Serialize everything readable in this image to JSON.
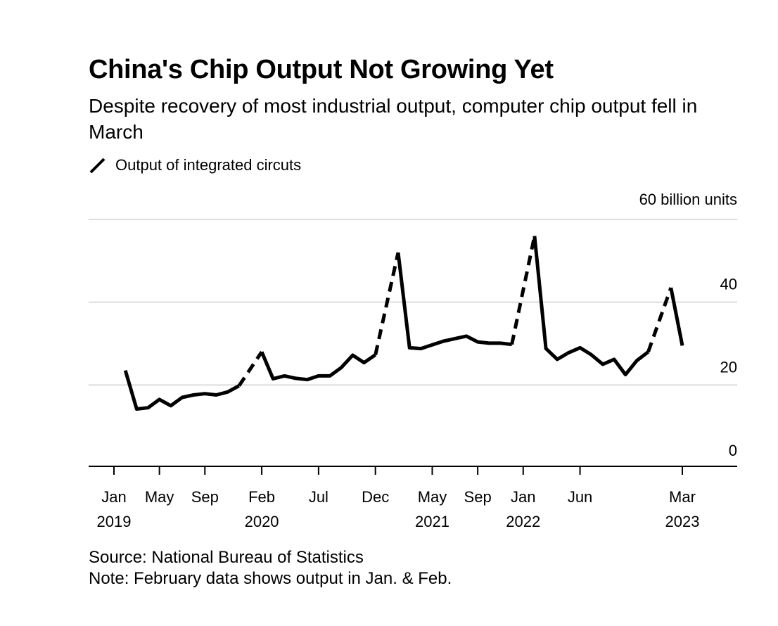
{
  "chart_data": {
    "type": "line",
    "title": "China's Chip Output Not Growing Yet",
    "subtitle": "Despite recovery of most industrial output, computer chip output fell in March",
    "legend": [
      {
        "name": "Output of integrated circuts",
        "color": "#000000"
      }
    ],
    "ylabel": "60 billion units",
    "ylim": [
      0,
      60
    ],
    "yticks": [
      0,
      20,
      40,
      60
    ],
    "ytick_labels": [
      "0",
      "20",
      "40",
      ""
    ],
    "xticks": [
      {
        "label": "Jan",
        "year": "2019",
        "x": "2019-01"
      },
      {
        "label": "May",
        "year": "",
        "x": "2019-05"
      },
      {
        "label": "Sep",
        "year": "",
        "x": "2019-09"
      },
      {
        "label": "Feb",
        "year": "2020",
        "x": "2020-02"
      },
      {
        "label": "Jul",
        "year": "",
        "x": "2020-07"
      },
      {
        "label": "Dec",
        "year": "",
        "x": "2020-12"
      },
      {
        "label": "May",
        "year": "2021",
        "x": "2021-05"
      },
      {
        "label": "Sep",
        "year": "",
        "x": "2021-09"
      },
      {
        "label": "Jan",
        "year": "2022",
        "x": "2022-01"
      },
      {
        "label": "Jun",
        "year": "",
        "x": "2022-06"
      },
      {
        "label": "Mar",
        "year": "2023",
        "x": "2023-03"
      }
    ],
    "xlim": [
      "2018-12",
      "2023-06"
    ],
    "series": [
      {
        "name": "Output of integrated circuts",
        "segments": [
          {
            "style": "solid",
            "points": [
              [
                "2019-02",
                23.5
              ],
              [
                "2019-03",
                14.2
              ],
              [
                "2019-04",
                14.5
              ],
              [
                "2019-05",
                16.5
              ],
              [
                "2019-06",
                15.0
              ],
              [
                "2019-07",
                17.0
              ],
              [
                "2019-08",
                17.6
              ],
              [
                "2019-09",
                17.9
              ],
              [
                "2019-10",
                17.6
              ],
              [
                "2019-11",
                18.3
              ],
              [
                "2019-12",
                19.8
              ]
            ]
          },
          {
            "style": "dashed",
            "points": [
              [
                "2019-12",
                19.8
              ],
              [
                "2020-02",
                28.0
              ]
            ]
          },
          {
            "style": "solid",
            "points": [
              [
                "2020-02",
                28.0
              ],
              [
                "2020-03",
                21.5
              ],
              [
                "2020-04",
                22.2
              ],
              [
                "2020-05",
                21.6
              ],
              [
                "2020-06",
                21.3
              ],
              [
                "2020-07",
                22.2
              ],
              [
                "2020-08",
                22.2
              ],
              [
                "2020-09",
                24.2
              ],
              [
                "2020-10",
                27.2
              ],
              [
                "2020-11",
                25.4
              ],
              [
                "2020-12",
                27.3
              ]
            ]
          },
          {
            "style": "dashed",
            "points": [
              [
                "2020-12",
                27.3
              ],
              [
                "2021-02",
                52.0
              ]
            ]
          },
          {
            "style": "solid",
            "points": [
              [
                "2021-02",
                52.0
              ],
              [
                "2021-03",
                29.0
              ],
              [
                "2021-04",
                28.8
              ],
              [
                "2021-05",
                29.7
              ],
              [
                "2021-06",
                30.6
              ],
              [
                "2021-07",
                31.2
              ],
              [
                "2021-08",
                31.8
              ],
              [
                "2021-09",
                30.4
              ],
              [
                "2021-10",
                30.1
              ],
              [
                "2021-11",
                30.1
              ],
              [
                "2021-12",
                29.8
              ]
            ]
          },
          {
            "style": "dashed",
            "points": [
              [
                "2021-12",
                29.8
              ],
              [
                "2022-02",
                56.0
              ]
            ]
          },
          {
            "style": "solid",
            "points": [
              [
                "2022-02",
                56.0
              ],
              [
                "2022-03",
                28.8
              ],
              [
                "2022-04",
                26.2
              ],
              [
                "2022-05",
                27.8
              ],
              [
                "2022-06",
                29.0
              ],
              [
                "2022-07",
                27.3
              ],
              [
                "2022-08",
                25.0
              ],
              [
                "2022-09",
                26.2
              ],
              [
                "2022-10",
                22.5
              ],
              [
                "2022-11",
                25.9
              ],
              [
                "2022-12",
                28.0
              ]
            ]
          },
          {
            "style": "dashed",
            "points": [
              [
                "2022-12",
                28.0
              ],
              [
                "2023-02",
                43.5
              ]
            ]
          },
          {
            "style": "solid",
            "points": [
              [
                "2023-02",
                43.5
              ],
              [
                "2023-03",
                29.5
              ]
            ]
          }
        ]
      }
    ],
    "grid": true,
    "source": "Source: National Bureau of Statistics",
    "note": "Note: February data shows output in Jan. & Feb."
  }
}
